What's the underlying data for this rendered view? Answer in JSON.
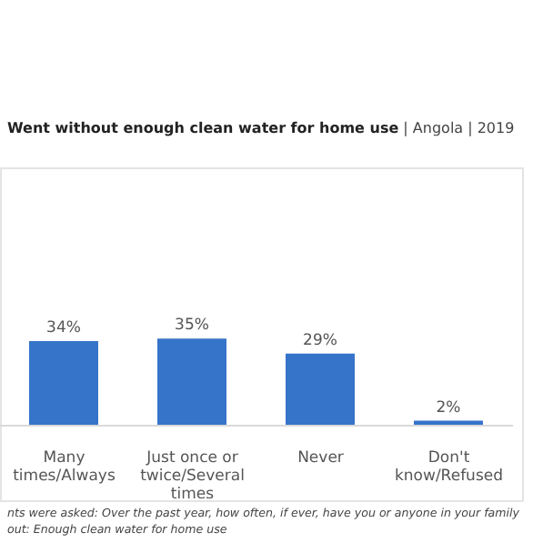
{
  "chart_data": {
    "type": "bar",
    "title": "Went without enough clean water for home use | Angola | 2019",
    "categories": [
      "Many times/Always",
      "Just once or twice/Several times",
      "Never",
      "Don't know/Refused"
    ],
    "values": [
      34,
      35,
      29,
      2
    ],
    "color": "#3674c9",
    "value_labels": [
      "34%",
      "35%",
      "29%",
      "2%"
    ],
    "tick_labels": "x",
    "grid": false,
    "legend": false,
    "annotations": [
      "nts were asked: Over the past year, how often, if ever, have you or anyone in your family",
      "out: Enough clean water for home use"
    ]
  }
}
